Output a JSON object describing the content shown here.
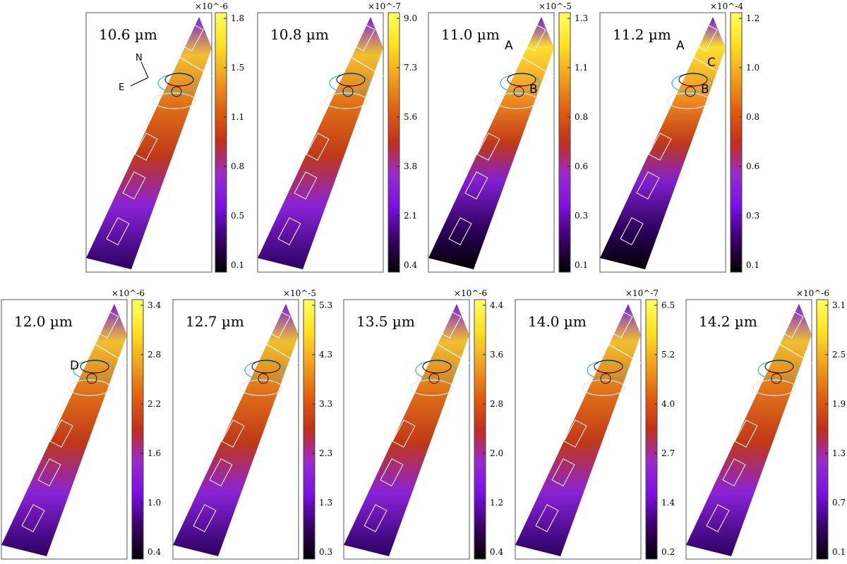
{
  "chart_data": [
    {
      "type": "heatmap",
      "title": "10.6 µm",
      "wavelength_um": 10.6,
      "colorbar": {
        "exponent": "×10^-6",
        "ticks": [
          "1.8",
          "1.5",
          "1.1",
          "0.8",
          "0.5",
          "0.1"
        ]
      },
      "labels": [],
      "compass": {
        "north": "N",
        "east": "E"
      },
      "contour_colors": [
        "#000000",
        "#3cc0c0",
        "#e6e6e6"
      ]
    },
    {
      "type": "heatmap",
      "title": "10.8 µm",
      "wavelength_um": 10.8,
      "colorbar": {
        "exponent": "×10^-7",
        "ticks": [
          "9.0",
          "7.3",
          "5.6",
          "3.8",
          "2.1",
          "0.4"
        ]
      },
      "labels": []
    },
    {
      "type": "heatmap",
      "title": "11.0 µm",
      "wavelength_um": 11.0,
      "colorbar": {
        "exponent": "×10^-5",
        "ticks": [
          "1.3",
          "1.1",
          "0.8",
          "0.6",
          "0.3",
          "0.1"
        ]
      },
      "labels": [
        "A",
        "B"
      ]
    },
    {
      "type": "heatmap",
      "title": "11.2 µm",
      "wavelength_um": 11.2,
      "colorbar": {
        "exponent": "×10^-4",
        "ticks": [
          "1.2",
          "1.0",
          "0.8",
          "0.6",
          "0.3",
          "0.1"
        ]
      },
      "labels": [
        "A",
        "C",
        "B"
      ]
    },
    {
      "type": "heatmap",
      "title": "12.0 µm",
      "wavelength_um": 12.0,
      "colorbar": {
        "exponent": "×10^-6",
        "ticks": [
          "3.4",
          "2.8",
          "2.2",
          "1.6",
          "1.0",
          "0.4"
        ]
      },
      "labels": [
        "D"
      ]
    },
    {
      "type": "heatmap",
      "title": "12.7 µm",
      "wavelength_um": 12.7,
      "colorbar": {
        "exponent": "×10^-5",
        "ticks": [
          "5.3",
          "4.3",
          "3.3",
          "2.3",
          "1.3",
          "0.3"
        ]
      },
      "labels": []
    },
    {
      "type": "heatmap",
      "title": "13.5 µm",
      "wavelength_um": 13.5,
      "colorbar": {
        "exponent": "×10^-6",
        "ticks": [
          "4.4",
          "3.6",
          "2.8",
          "2.0",
          "1.2",
          "0.4"
        ]
      },
      "labels": []
    },
    {
      "type": "heatmap",
      "title": "14.0 µm",
      "wavelength_um": 14.0,
      "colorbar": {
        "exponent": "×10^-7",
        "ticks": [
          "6.5",
          "5.2",
          "4.0",
          "2.7",
          "1.4",
          "0.2"
        ]
      },
      "labels": []
    },
    {
      "type": "heatmap",
      "title": "14.2 µm",
      "wavelength_um": 14.2,
      "colorbar": {
        "exponent": "×10^-6",
        "ticks": [
          "3.1",
          "2.5",
          "1.9",
          "1.3",
          "0.7",
          "0.1"
        ]
      },
      "labels": []
    }
  ],
  "colormap": [
    "#000000",
    "#3a0064",
    "#7a10e0",
    "#9a2ad0",
    "#c0301a",
    "#e06010",
    "#f0a020",
    "#ffe020",
    "#ffff60"
  ]
}
